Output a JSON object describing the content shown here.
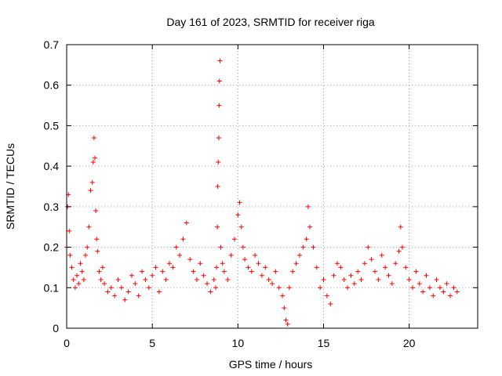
{
  "chart_data": {
    "type": "scatter",
    "title": "Day 161 of 2023, SRMTID for receiver riga",
    "xlabel": "GPS time / hours",
    "ylabel": "SRMTID / TECUs",
    "xlim": [
      0,
      24.0
    ],
    "ylim": [
      0,
      0.7
    ],
    "xticks": [
      0,
      5,
      10,
      15,
      20
    ],
    "xtick_labels": [
      "0",
      "5",
      "10",
      "15",
      "20"
    ],
    "yticks": [
      0,
      0.1,
      0.2,
      0.3,
      0.4,
      0.5,
      0.6,
      0.7
    ],
    "ytick_labels": [
      "0",
      "0.1",
      "0.2",
      "0.3",
      "0.4",
      "0.5",
      "0.6",
      "0.7"
    ],
    "grid": true,
    "marker": "plus",
    "color": "#ff0000",
    "series": [
      {
        "name": "SRMTID",
        "x": [
          0.0,
          0.05,
          0.1,
          0.15,
          0.2,
          0.3,
          0.4,
          0.5,
          0.6,
          0.7,
          0.8,
          0.9,
          1.0,
          1.1,
          1.2,
          1.3,
          1.4,
          1.5,
          1.55,
          1.6,
          1.65,
          1.7,
          1.75,
          1.8,
          1.9,
          2.0,
          2.1,
          2.2,
          2.4,
          2.6,
          2.8,
          3.0,
          3.2,
          3.4,
          3.6,
          3.8,
          4.0,
          4.2,
          4.4,
          4.6,
          4.8,
          5.0,
          5.2,
          5.4,
          5.6,
          5.8,
          6.0,
          6.2,
          6.4,
          6.6,
          6.8,
          7.0,
          7.2,
          7.4,
          7.6,
          7.8,
          8.0,
          8.2,
          8.4,
          8.6,
          8.7,
          8.75,
          8.8,
          8.82,
          8.85,
          8.88,
          8.9,
          8.92,
          8.95,
          9.0,
          9.1,
          9.2,
          9.4,
          9.6,
          9.8,
          10.0,
          10.1,
          10.2,
          10.3,
          10.4,
          10.6,
          10.8,
          11.0,
          11.2,
          11.4,
          11.6,
          11.8,
          12.0,
          12.2,
          12.4,
          12.6,
          12.7,
          12.8,
          12.9,
          13.0,
          13.2,
          13.4,
          13.6,
          13.8,
          14.0,
          14.1,
          14.2,
          14.4,
          14.6,
          14.8,
          15.0,
          15.2,
          15.4,
          15.6,
          15.8,
          16.0,
          16.2,
          16.4,
          16.6,
          16.8,
          17.0,
          17.2,
          17.4,
          17.6,
          17.8,
          18.0,
          18.2,
          18.4,
          18.6,
          18.8,
          19.0,
          19.2,
          19.4,
          19.5,
          19.6,
          19.8,
          20.0,
          20.2,
          20.4,
          20.6,
          20.8,
          21.0,
          21.2,
          21.4,
          21.6,
          21.8,
          22.0,
          22.2,
          22.4,
          22.6,
          22.8
        ],
        "y": [
          0.2,
          0.3,
          0.33,
          0.24,
          0.18,
          0.15,
          0.12,
          0.1,
          0.13,
          0.11,
          0.16,
          0.14,
          0.12,
          0.18,
          0.2,
          0.25,
          0.34,
          0.36,
          0.41,
          0.47,
          0.42,
          0.29,
          0.22,
          0.19,
          0.14,
          0.12,
          0.15,
          0.11,
          0.09,
          0.1,
          0.08,
          0.12,
          0.1,
          0.07,
          0.09,
          0.13,
          0.11,
          0.08,
          0.14,
          0.12,
          0.1,
          0.13,
          0.15,
          0.09,
          0.14,
          0.12,
          0.16,
          0.15,
          0.2,
          0.18,
          0.22,
          0.26,
          0.17,
          0.14,
          0.12,
          0.16,
          0.13,
          0.11,
          0.09,
          0.12,
          0.1,
          0.15,
          0.25,
          0.35,
          0.41,
          0.47,
          0.55,
          0.61,
          0.66,
          0.2,
          0.16,
          0.14,
          0.12,
          0.18,
          0.22,
          0.28,
          0.31,
          0.25,
          0.2,
          0.17,
          0.15,
          0.14,
          0.18,
          0.16,
          0.13,
          0.15,
          0.12,
          0.11,
          0.14,
          0.1,
          0.08,
          0.05,
          0.02,
          0.01,
          0.1,
          0.14,
          0.16,
          0.18,
          0.2,
          0.22,
          0.3,
          0.25,
          0.2,
          0.15,
          0.1,
          0.12,
          0.08,
          0.06,
          0.13,
          0.16,
          0.15,
          0.12,
          0.1,
          0.13,
          0.11,
          0.14,
          0.12,
          0.16,
          0.2,
          0.17,
          0.14,
          0.12,
          0.18,
          0.15,
          0.13,
          0.11,
          0.16,
          0.19,
          0.25,
          0.2,
          0.15,
          0.12,
          0.1,
          0.14,
          0.11,
          0.09,
          0.13,
          0.1,
          0.08,
          0.12,
          0.1,
          0.09,
          0.11,
          0.08,
          0.1,
          0.09
        ]
      }
    ]
  }
}
